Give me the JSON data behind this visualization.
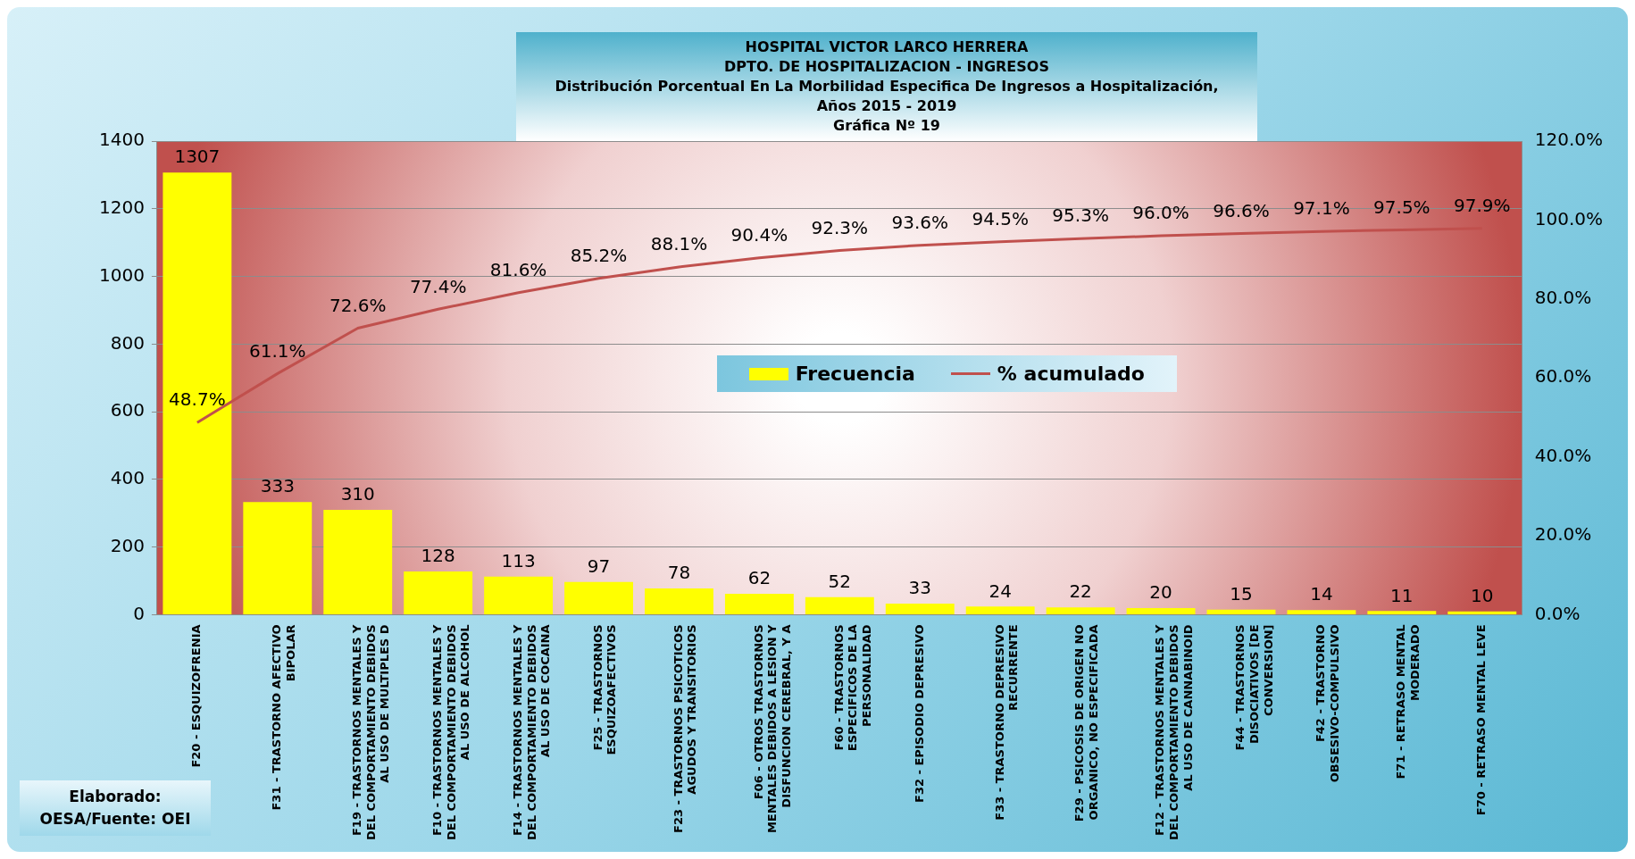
{
  "chart_data": {
    "type": "bar",
    "title": "HOSPITAL VICTOR LARCO HERRERA",
    "subtitle": "DPTO. DE HOSPITALIZACION - INGRESOS\nDistribución Porcentual En La Morbilidad Especifica De Ingresos a Hospitalización,\nAños 2015 - 2019\nGráfica Nº 19",
    "annotations": [
      "Elaborado:\nOESA/Fuente: OEI"
    ],
    "categories": [
      "F20 - ESQUIZOFRENIA",
      "F31 - TRASTORNO AFECTIVO BIPOLAR",
      "F19 - TRASTORNOS MENTALES Y DEL COMPORTAMIENTO DEBIDOS AL USO DE MULTIPLES D",
      "F10 - TRASTORNOS MENTALES Y DEL COMPORTAMIENTO DEBIDOS AL USO DE ALCOHOL",
      "F14 - TRASTORNOS MENTALES Y DEL COMPORTAMIENTO DEBIDOS AL USO DE COCAINA",
      "F25 - TRASTORNOS ESQUIZOAFECTIVOS",
      "F23 - TRASTORNOS PSICOTICOS AGUDOS Y TRANSITORIOS",
      "F06 - OTROS TRASTORNOS MENTALES DEBIDOS A LESION Y DISFUNCION CEREBRAL, Y A",
      "F60 - TRASTORNOS ESPECIFICOS DE LA PERSONALIDAD",
      "F32 - EPISODIO DEPRESIVO",
      "F33 - TRASTORNO DEPRESIVO RECURRENTE",
      "F29 - PSICOSIS DE ORIGEN NO ORGANICO, NO ESPECIFICADA",
      "F12 - TRASTORNOS MENTALES Y DEL COMPORTAMIENTO DEBIDOS AL USO DE CANNABINOID",
      "F44 - TRASTORNOS DISOCIATIVOS [DE CONVERSION]",
      "F42 - TRASTORNO OBSESIVO-COMPULSIVO",
      "F71 - RETRASO MENTAL MODERADO",
      "F70 - RETRASO MENTAL LEVE"
    ],
    "series": [
      {
        "name": "Frecuencia",
        "color": "#ffff00",
        "values": [
          1307,
          333,
          310,
          128,
          113,
          97,
          78,
          62,
          52,
          33,
          24,
          22,
          20,
          15,
          14,
          11,
          10
        ],
        "value_labels": [
          "1307",
          "333",
          "310",
          "128",
          "113",
          "97",
          "78",
          "62",
          "52",
          "33",
          "24",
          "22",
          "20",
          "15",
          "14",
          "11",
          "10"
        ]
      },
      {
        "name": "% acumulado",
        "type": "line",
        "axis": "y2",
        "color": "#c0504d",
        "values": [
          48.7,
          61.1,
          72.6,
          77.4,
          81.6,
          85.2,
          88.1,
          90.4,
          92.3,
          93.6,
          94.5,
          95.3,
          96.0,
          96.6,
          97.1,
          97.5,
          97.9
        ],
        "value_labels": [
          "48.7%",
          "61.1%",
          "72.6%",
          "77.4%",
          "81.6%",
          "85.2%",
          "88.1%",
          "90.4%",
          "92.3%",
          "93.6%",
          "94.5%",
          "95.3%",
          "96.0%",
          "96.6%",
          "97.1%",
          "97.5%",
          "97.9%"
        ]
      }
    ],
    "ylim": [
      0,
      1400
    ],
    "yticks": [
      0,
      200,
      400,
      600,
      800,
      1000,
      1200,
      1400
    ],
    "y2lim": [
      0,
      120
    ],
    "y2ticks": [
      {
        "value": 0,
        "label": "0.0%"
      },
      {
        "value": 20,
        "label": "20.0%"
      },
      {
        "value": 40,
        "label": "40.0%"
      },
      {
        "value": 60,
        "label": "60.0%"
      },
      {
        "value": 80,
        "label": "80.0%"
      },
      {
        "value": 100,
        "label": "100.0%"
      },
      {
        "value": 120,
        "label": "120.0%"
      }
    ],
    "grid": "y",
    "legend": "center",
    "marker": "none"
  }
}
